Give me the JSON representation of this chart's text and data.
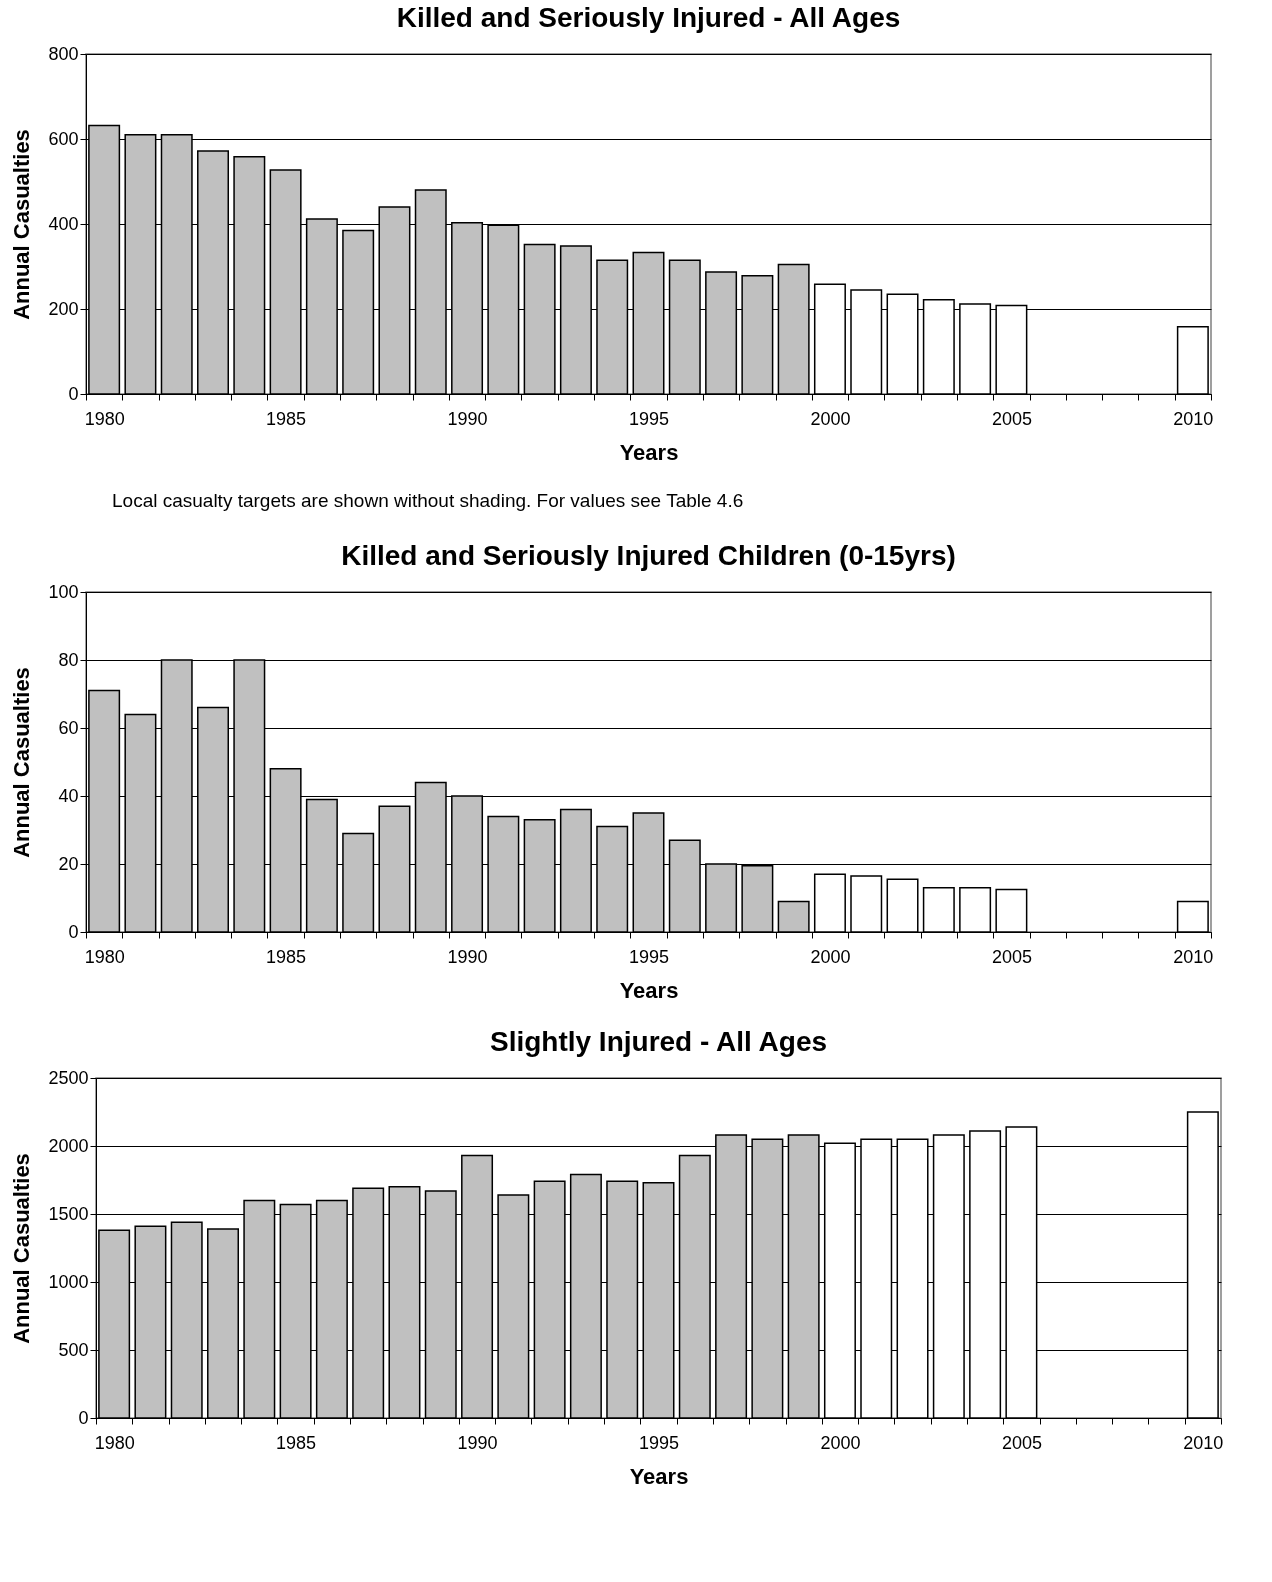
{
  "chart_data": [
    {
      "type": "bar",
      "title": "Killed and Seriously Injured - All Ages",
      "xlabel": "Years",
      "ylabel": "Annual Casualties",
      "categories": [
        "1980",
        null,
        null,
        null,
        null,
        "1985",
        null,
        null,
        null,
        null,
        "1990",
        null,
        null,
        null,
        null,
        "1995",
        null,
        null,
        null,
        null,
        "2000",
        null,
        null,
        null,
        null,
        "2005",
        null,
        null,
        null,
        null,
        "2010"
      ],
      "values": [
        632,
        610,
        610,
        572,
        558,
        527,
        412,
        385,
        440,
        480,
        403,
        397,
        352,
        348,
        315,
        333,
        315,
        287,
        278,
        305,
        258,
        245,
        235,
        222,
        212,
        208,
        null,
        null,
        null,
        null,
        158
      ],
      "colors": [
        "#c0c0c0",
        "#c0c0c0",
        "#c0c0c0",
        "#c0c0c0",
        "#c0c0c0",
        "#c0c0c0",
        "#c0c0c0",
        "#c0c0c0",
        "#c0c0c0",
        "#c0c0c0",
        "#c0c0c0",
        "#c0c0c0",
        "#c0c0c0",
        "#c0c0c0",
        "#c0c0c0",
        "#c0c0c0",
        "#c0c0c0",
        "#c0c0c0",
        "#c0c0c0",
        "#c0c0c0",
        "#ffffff",
        "#ffffff",
        "#ffffff",
        "#ffffff",
        "#ffffff",
        "#ffffff",
        "#ffffff",
        "#ffffff",
        "#ffffff",
        "#ffffff",
        "#ffffff"
      ],
      "ylim": [
        0,
        800
      ],
      "yticks": [
        0,
        200,
        400,
        600,
        800
      ],
      "grid": "y",
      "annotations": [
        "Local casualty targets are shown without shading. For values see Table 4.6"
      ]
    },
    {
      "type": "bar",
      "title": "Killed and Seriously Injured Children (0-15yrs)",
      "xlabel": "Years",
      "ylabel": "Annual Casualties",
      "categories": [
        "1980",
        null,
        null,
        null,
        null,
        "1985",
        null,
        null,
        null,
        null,
        "1990",
        null,
        null,
        null,
        null,
        "1995",
        null,
        null,
        null,
        null,
        "2000",
        null,
        null,
        null,
        null,
        "2005",
        null,
        null,
        null,
        null,
        "2010"
      ],
      "values": [
        71,
        64,
        80,
        66,
        80,
        48,
        39,
        29,
        37,
        44,
        40,
        34,
        33,
        36,
        31,
        35,
        27,
        20,
        19.5,
        9,
        17,
        16.5,
        15.5,
        13,
        13,
        12.5,
        null,
        null,
        null,
        null,
        9
      ],
      "colors": [
        "#c0c0c0",
        "#c0c0c0",
        "#c0c0c0",
        "#c0c0c0",
        "#c0c0c0",
        "#c0c0c0",
        "#c0c0c0",
        "#c0c0c0",
        "#c0c0c0",
        "#c0c0c0",
        "#c0c0c0",
        "#c0c0c0",
        "#c0c0c0",
        "#c0c0c0",
        "#c0c0c0",
        "#c0c0c0",
        "#c0c0c0",
        "#c0c0c0",
        "#c0c0c0",
        "#c0c0c0",
        "#ffffff",
        "#ffffff",
        "#ffffff",
        "#ffffff",
        "#ffffff",
        "#ffffff",
        "#ffffff",
        "#ffffff",
        "#ffffff",
        "#ffffff",
        "#ffffff"
      ],
      "ylim": [
        0,
        100
      ],
      "yticks": [
        0,
        20,
        40,
        60,
        80,
        100
      ],
      "grid": "y"
    },
    {
      "type": "bar",
      "title": "Slightly Injured - All Ages",
      "xlabel": "Years",
      "ylabel": "Annual Casualties",
      "categories": [
        "1980",
        null,
        null,
        null,
        null,
        "1985",
        null,
        null,
        null,
        null,
        "1990",
        null,
        null,
        null,
        null,
        "1995",
        null,
        null,
        null,
        null,
        "2000",
        null,
        null,
        null,
        null,
        "2005",
        null,
        null,
        null,
        null,
        "2010"
      ],
      "values": [
        1380,
        1410,
        1440,
        1390,
        1600,
        1570,
        1600,
        1690,
        1700,
        1670,
        1930,
        1640,
        1740,
        1790,
        1740,
        1730,
        1930,
        2080,
        2050,
        2080,
        2020,
        2050,
        2050,
        2080,
        2110,
        2140,
        null,
        null,
        null,
        null,
        2250
      ],
      "colors": [
        "#c0c0c0",
        "#c0c0c0",
        "#c0c0c0",
        "#c0c0c0",
        "#c0c0c0",
        "#c0c0c0",
        "#c0c0c0",
        "#c0c0c0",
        "#c0c0c0",
        "#c0c0c0",
        "#c0c0c0",
        "#c0c0c0",
        "#c0c0c0",
        "#c0c0c0",
        "#c0c0c0",
        "#c0c0c0",
        "#c0c0c0",
        "#c0c0c0",
        "#c0c0c0",
        "#c0c0c0",
        "#ffffff",
        "#ffffff",
        "#ffffff",
        "#ffffff",
        "#ffffff",
        "#ffffff",
        "#ffffff",
        "#ffffff",
        "#ffffff",
        "#ffffff",
        "#ffffff"
      ],
      "ylim": [
        0,
        2500
      ],
      "yticks": [
        0,
        500,
        1000,
        1500,
        2000,
        2500
      ],
      "grid": "y"
    }
  ]
}
